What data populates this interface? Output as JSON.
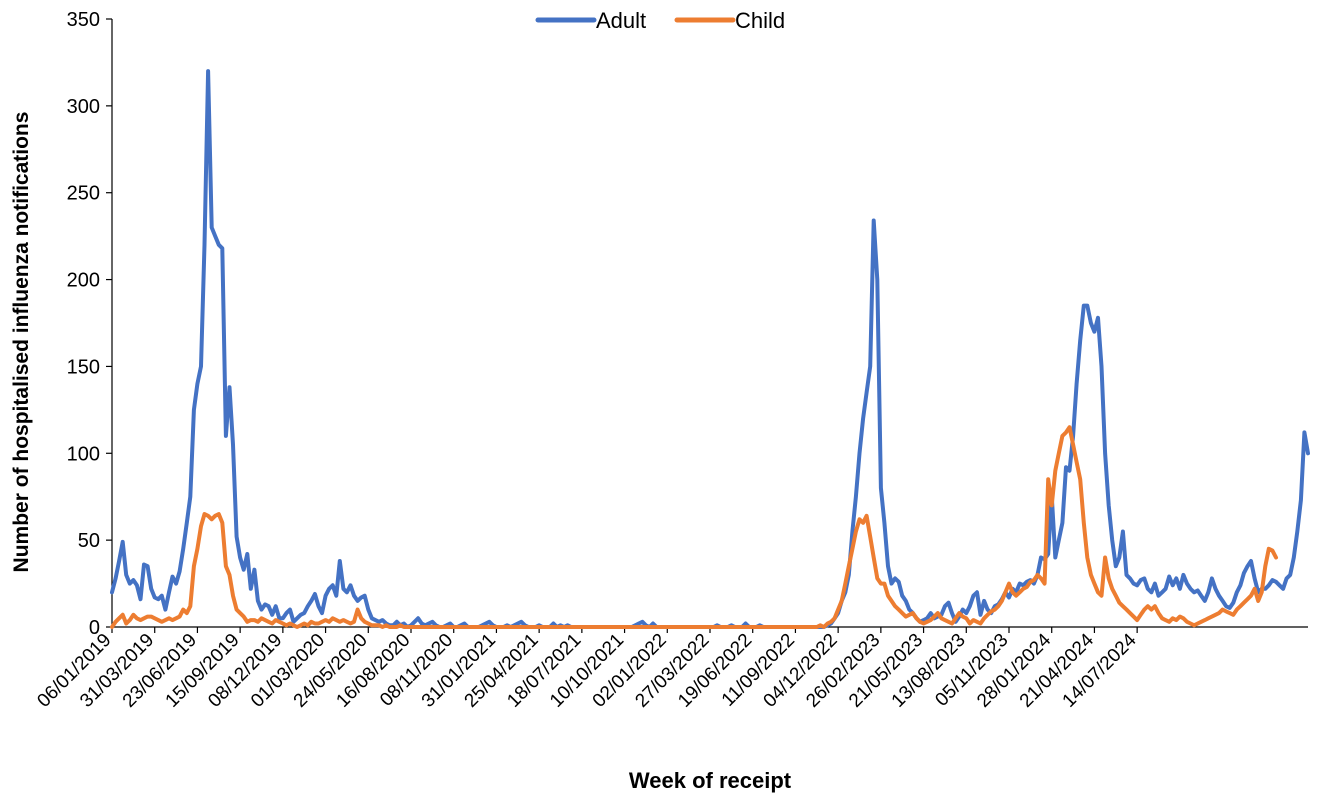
{
  "chart_data": {
    "type": "line",
    "title": "",
    "xlabel": "Week of receipt",
    "ylabel": "Number of hospitalised  influenza  notifications",
    "ylim": [
      0,
      350
    ],
    "yticks": [
      0,
      50,
      100,
      150,
      200,
      250,
      300,
      350
    ],
    "xticks": [
      "06/01/2019",
      "31/03/2019",
      "23/06/2019",
      "15/09/2019",
      "08/12/2019",
      "01/03/2020",
      "24/05/2020",
      "16/08/2020",
      "08/11/2020",
      "31/01/2021",
      "25/04/2021",
      "18/07/2021",
      "10/10/2021",
      "02/01/2022",
      "27/03/2022",
      "19/06/2022",
      "11/09/2022",
      "04/12/2022",
      "26/02/2023",
      "21/05/2023",
      "13/08/2023",
      "05/11/2023",
      "28/01/2024",
      "21/04/2024",
      "14/07/2024"
    ],
    "legend_position": "top",
    "grid": false,
    "x_start": "06/01/2019",
    "x_interval_weeks": 1,
    "series": [
      {
        "name": "Adult",
        "color": "#4472C4",
        "values": [
          20,
          28,
          38,
          49,
          30,
          25,
          27,
          24,
          16,
          36,
          35,
          22,
          17,
          16,
          18,
          10,
          20,
          29,
          25,
          32,
          45,
          60,
          75,
          125,
          140,
          150,
          220,
          320,
          230,
          225,
          220,
          218,
          110,
          138,
          105,
          52,
          40,
          33,
          42,
          22,
          33,
          15,
          10,
          13,
          12,
          7,
          12,
          5,
          5,
          8,
          10,
          3,
          5,
          7,
          8,
          12,
          15,
          19,
          12,
          8,
          18,
          22,
          24,
          18,
          38,
          22,
          20,
          24,
          18,
          15,
          17,
          18,
          10,
          5,
          4,
          3,
          4,
          2,
          1,
          1,
          3,
          1,
          2,
          0,
          1,
          3,
          5,
          2,
          1,
          2,
          3,
          1,
          0,
          0,
          1,
          2,
          0,
          0,
          1,
          2,
          0,
          0,
          0,
          0,
          1,
          2,
          3,
          1,
          0,
          0,
          0,
          1,
          0,
          1,
          2,
          3,
          1,
          0,
          0,
          0,
          1,
          0,
          0,
          0,
          2,
          0,
          1,
          0,
          1,
          0,
          0,
          0,
          0,
          0,
          0,
          0,
          0,
          0,
          0,
          0,
          0,
          0,
          0,
          0,
          0,
          0,
          0,
          1,
          2,
          3,
          1,
          0,
          2,
          0,
          0,
          0,
          0,
          0,
          0,
          0,
          0,
          0,
          0,
          0,
          0,
          0,
          0,
          0,
          0,
          0,
          1,
          0,
          0,
          0,
          1,
          0,
          0,
          0,
          2,
          0,
          0,
          0,
          1,
          0,
          0,
          0,
          0,
          0,
          0,
          0,
          0,
          0,
          0,
          0,
          0,
          0,
          0,
          0,
          0,
          0,
          0,
          1,
          2,
          5,
          8,
          15,
          20,
          30,
          55,
          75,
          100,
          120,
          135,
          150,
          234,
          200,
          80,
          60,
          35,
          25,
          28,
          26,
          18,
          15,
          10,
          8,
          5,
          3,
          4,
          5,
          8,
          5,
          6,
          7,
          12,
          14,
          8,
          3,
          6,
          10,
          8,
          12,
          18,
          20,
          7,
          15,
          10,
          8,
          12,
          13,
          16,
          20,
          17,
          22,
          20,
          25,
          24,
          26,
          27,
          25,
          30,
          40,
          39,
          42,
          76,
          40,
          50,
          60,
          92,
          90,
          110,
          140,
          165,
          185,
          185,
          175,
          170,
          178,
          150,
          100,
          70,
          50,
          35,
          40,
          55,
          30,
          28,
          25,
          24,
          27,
          28,
          22,
          20,
          25,
          18,
          20,
          22,
          29,
          24,
          28,
          22,
          30,
          25,
          22,
          20,
          21,
          18,
          15,
          20,
          28,
          22,
          18,
          15,
          12,
          11,
          14,
          20,
          24,
          31,
          35,
          38,
          28,
          20,
          22,
          22,
          24,
          27,
          26,
          24,
          22,
          28,
          30,
          40,
          55,
          73,
          112,
          100
        ]
      },
      {
        "name": "Child",
        "color": "#ED7D31",
        "values": [
          0,
          3,
          5,
          7,
          2,
          4,
          7,
          5,
          4,
          5,
          6,
          6,
          5,
          4,
          3,
          4,
          5,
          4,
          5,
          6,
          10,
          8,
          12,
          35,
          45,
          58,
          65,
          64,
          62,
          64,
          65,
          60,
          35,
          30,
          18,
          10,
          8,
          6,
          3,
          4,
          4,
          3,
          5,
          4,
          3,
          2,
          4,
          3,
          2,
          1,
          2,
          1,
          0,
          1,
          2,
          1,
          3,
          2,
          2,
          3,
          4,
          3,
          5,
          4,
          3,
          4,
          3,
          2,
          3,
          10,
          5,
          3,
          2,
          1,
          1,
          1,
          0,
          1,
          0,
          0,
          0,
          1,
          0,
          0,
          0,
          0,
          0,
          0,
          0,
          0,
          0,
          0,
          0,
          0,
          0,
          0,
          0,
          0,
          0,
          0,
          0,
          0,
          0,
          0,
          0,
          0,
          0,
          0,
          0,
          0,
          0,
          0,
          0,
          0,
          0,
          0,
          0,
          0,
          0,
          0,
          0,
          0,
          0,
          0,
          0,
          0,
          0,
          0,
          0,
          0,
          0,
          0,
          0,
          0,
          0,
          0,
          0,
          0,
          0,
          0,
          0,
          0,
          0,
          0,
          0,
          0,
          0,
          0,
          0,
          0,
          0,
          0,
          0,
          0,
          0,
          0,
          0,
          0,
          0,
          0,
          0,
          0,
          0,
          0,
          0,
          0,
          0,
          0,
          0,
          0,
          0,
          0,
          0,
          0,
          0,
          0,
          0,
          0,
          0,
          0,
          0,
          0,
          0,
          0,
          0,
          0,
          0,
          0,
          0,
          0,
          0,
          0,
          0,
          0,
          0,
          0,
          0,
          0,
          0,
          1,
          0,
          2,
          3,
          5,
          10,
          15,
          25,
          35,
          45,
          55,
          62,
          60,
          64,
          52,
          40,
          28,
          25,
          25,
          18,
          15,
          12,
          10,
          8,
          6,
          7,
          8,
          5,
          3,
          2,
          3,
          4,
          6,
          8,
          5,
          4,
          3,
          2,
          5,
          8,
          6,
          5,
          2,
          4,
          3,
          2,
          5,
          7,
          9,
          10,
          12,
          15,
          20,
          25,
          20,
          18,
          20,
          22,
          23,
          26,
          27,
          30,
          28,
          25,
          85,
          70,
          90,
          100,
          110,
          112,
          115,
          105,
          95,
          85,
          60,
          40,
          30,
          25,
          20,
          18,
          40,
          28,
          22,
          18,
          14,
          12,
          10,
          8,
          6,
          4,
          7,
          10,
          12,
          10,
          12,
          8,
          5,
          4,
          3,
          5,
          4,
          6,
          5,
          3,
          2,
          1,
          2,
          3,
          4,
          5,
          6,
          7,
          8,
          10,
          9,
          8,
          7,
          10,
          12,
          14,
          16,
          18,
          22,
          15,
          20,
          35,
          45,
          44,
          40
        ]
      }
    ]
  }
}
